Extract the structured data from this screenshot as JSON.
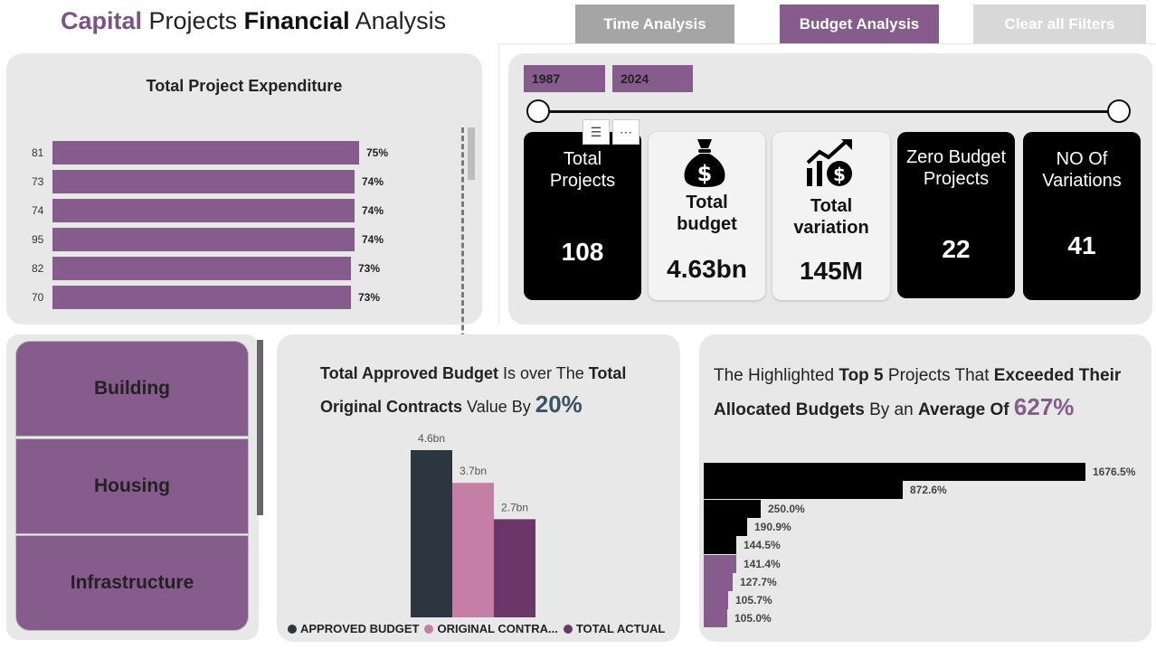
{
  "header": {
    "title_part1": "Capital",
    "title_part2": " Projects ",
    "title_part3": "Financial",
    "title_part4": " Analysis",
    "buttons": [
      {
        "label": "Time Analysis",
        "color": "#a5a5a5"
      },
      {
        "label": "Budget Analysis",
        "color": "#865c8c"
      },
      {
        "label": "Clear all Filters",
        "color": "#d8d8d8"
      }
    ]
  },
  "expenditure": {
    "title": "Total Project Expenditure",
    "rows": [
      {
        "category": "81",
        "value": 75,
        "label": "75%"
      },
      {
        "category": "73",
        "value": 74,
        "label": "74%"
      },
      {
        "category": "74",
        "value": 74,
        "label": "74%"
      },
      {
        "category": "95",
        "value": 74,
        "label": "74%"
      },
      {
        "category": "82",
        "value": 73,
        "label": "73%"
      },
      {
        "category": "70",
        "value": 73,
        "label": "73%"
      }
    ]
  },
  "timeline": {
    "start": "1987",
    "end": "2024"
  },
  "kpis": [
    {
      "label": "Total Projects",
      "value": "108",
      "style": "dark",
      "icon": ""
    },
    {
      "label": "Total budget",
      "value": "4.63bn",
      "style": "light",
      "icon": "money-bag-icon"
    },
    {
      "label": "Total variation",
      "value": "145M",
      "style": "light",
      "icon": "growth-chart-icon"
    },
    {
      "label": "Zero Budget Projects",
      "value": "22",
      "style": "dark",
      "icon": ""
    },
    {
      "label": "NO Of Variations",
      "value": "41",
      "style": "dark",
      "icon": ""
    }
  ],
  "categories": [
    "Building",
    "Housing",
    "Infrastructure"
  ],
  "budget_panel": {
    "text1": "Total Approved Budget",
    "text2": " Is over The ",
    "text3": "Total Original Contracts",
    "text4": " Value By ",
    "percent": "20%"
  },
  "top5_panel": {
    "text1": "The Highlighted ",
    "text2": "Top 5",
    "text3": " Projects That ",
    "text4": "Exceeded Their Allocated Budgets",
    "text5": " By an ",
    "text6": "Average Of",
    "percent": "627%"
  },
  "chart_data": [
    {
      "type": "bar",
      "orientation": "horizontal",
      "title": "Total Project Expenditure",
      "categories": [
        "81",
        "73",
        "74",
        "95",
        "82",
        "70"
      ],
      "values": [
        75,
        74,
        74,
        74,
        73,
        73
      ],
      "value_labels": [
        "75%",
        "74%",
        "74%",
        "74%",
        "73%",
        "73%"
      ]
    },
    {
      "type": "bar",
      "series": [
        {
          "name": "APPROVED BUDGET",
          "value": 4.6,
          "label": "4.6bn",
          "color": "#2b3640"
        },
        {
          "name": "ORIGINAL CONTRA...",
          "value": 3.7,
          "label": "3.7bn",
          "color": "#c57ea5"
        },
        {
          "name": "TOTAL ACTUAL",
          "value": 2.7,
          "label": "2.7bn",
          "color": "#6b3668"
        }
      ],
      "legend": "bottom"
    },
    {
      "type": "bar",
      "orientation": "horizontal",
      "values": [
        1676.5,
        872.6,
        250.0,
        190.9,
        144.5,
        141.4,
        127.7,
        105.7,
        105.0
      ],
      "value_labels": [
        "1676.5%",
        "872.6%",
        "250.0%",
        "190.9%",
        "144.5%",
        "141.4%",
        "127.7%",
        "105.7%",
        "105.0%"
      ],
      "highlighted_count": 5,
      "highlight_color": "#000000",
      "other_color": "#865c8c"
    }
  ]
}
